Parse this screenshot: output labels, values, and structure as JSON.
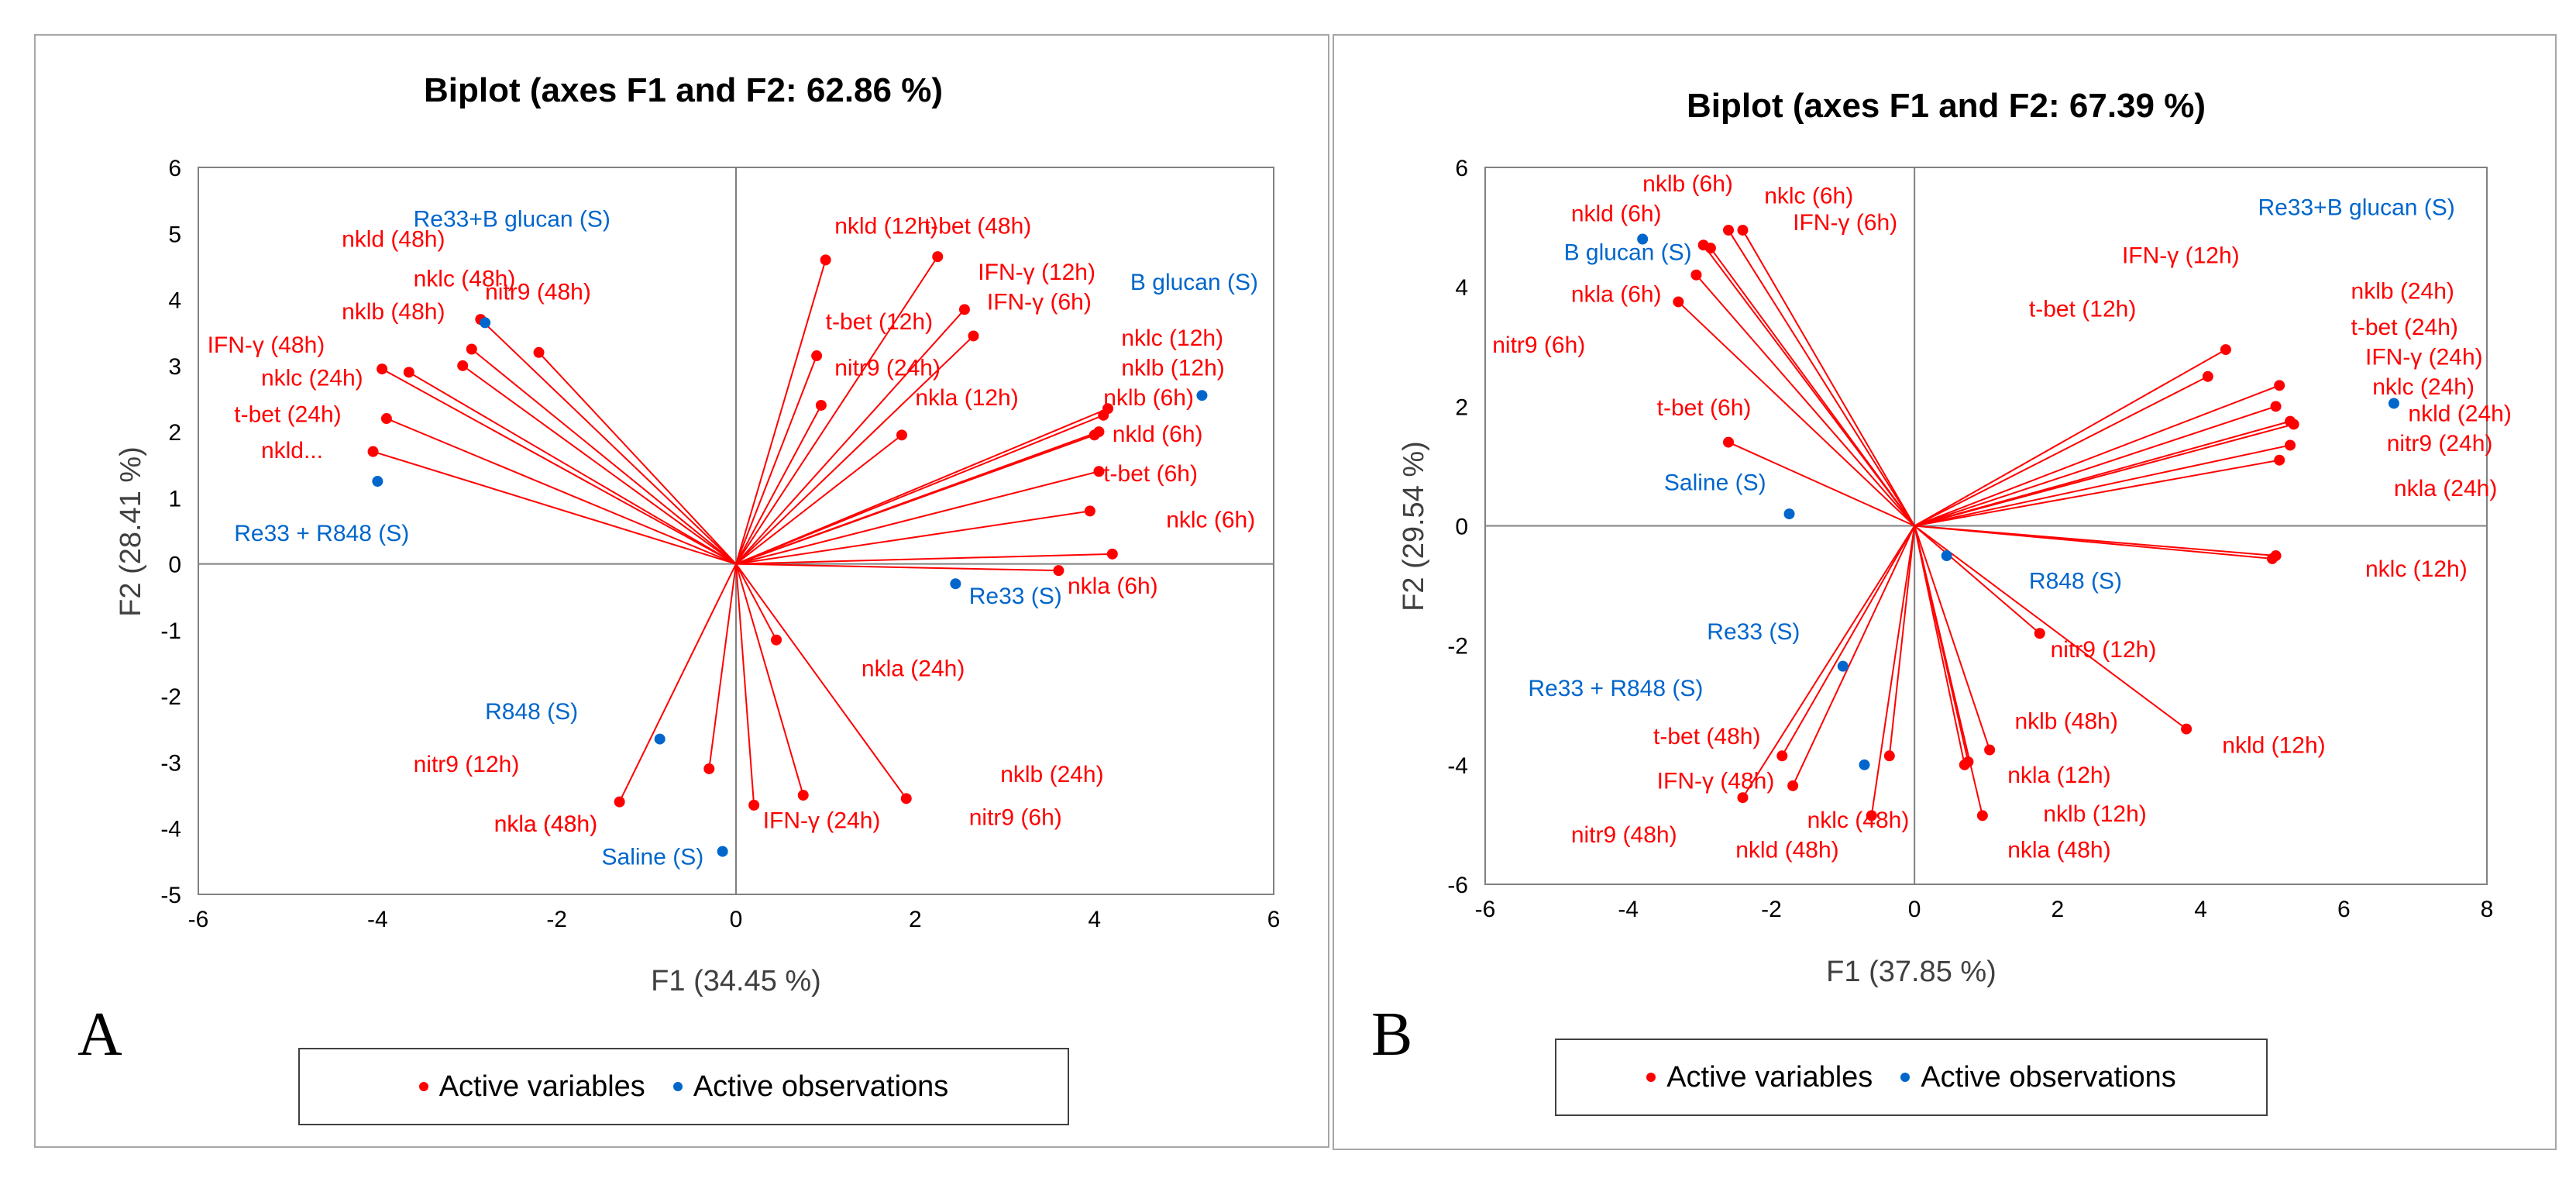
{
  "colors": {
    "variable": "#ff0000",
    "observation": "#0066cc",
    "axis": "#808080"
  },
  "legend": {
    "variables": "Active variables",
    "observations": "Active observations"
  },
  "panels": {
    "A": "A",
    "B": "B"
  },
  "chart_data": [
    {
      "type": "scatter",
      "subtype": "biplot",
      "panel": "A",
      "title": "Biplot (axes F1 and F2: 62.86 %)",
      "xlabel": "F1 (34.45 %)",
      "ylabel": "F2 (28.41 %)",
      "xlim": [
        -6,
        6
      ],
      "ylim": [
        -5,
        6
      ],
      "xticks": [
        -6,
        -4,
        -2,
        0,
        2,
        4,
        6
      ],
      "yticks": [
        -5,
        -4,
        -3,
        -2,
        -1,
        0,
        1,
        2,
        3,
        4,
        5,
        6
      ],
      "variables": [
        {
          "name": "nkld (48h)",
          "x": -2.2,
          "y": 3.2,
          "lx": -4.4,
          "ly": 4.8
        },
        {
          "name": "nklc (48h)",
          "x": -3.05,
          "y": 3.0,
          "lx": -3.6,
          "ly": 4.2
        },
        {
          "name": "nklb (48h)",
          "x": -3.65,
          "y": 2.9,
          "lx": -4.4,
          "ly": 3.7
        },
        {
          "name": "nitr9 (48h)",
          "x": -2.95,
          "y": 3.25,
          "lx": -2.8,
          "ly": 4.0
        },
        {
          "name": "IFN-γ (48h)",
          "x": -3.95,
          "y": 2.95,
          "lx": -5.9,
          "ly": 3.2
        },
        {
          "name": "nklc (24h)",
          "x": -2.85,
          "y": 3.7,
          "lx": -5.3,
          "ly": 2.7
        },
        {
          "name": "t-bet (24h)",
          "x": -3.9,
          "y": 2.2,
          "lx": -5.6,
          "ly": 2.15
        },
        {
          "name": "nkld...",
          "x": -4.05,
          "y": 1.7,
          "lx": -5.3,
          "ly": 1.6
        },
        {
          "name": "nkld (12h)",
          "x": 1.0,
          "y": 4.6,
          "lx": 1.1,
          "ly": 5.0
        },
        {
          "name": "t-bet (48h)",
          "x": 2.25,
          "y": 4.65,
          "lx": 2.1,
          "ly": 5.0
        },
        {
          "name": "IFN-γ (12h)",
          "x": 2.55,
          "y": 3.85,
          "lx": 2.7,
          "ly": 4.3
        },
        {
          "name": "IFN-γ (6h)",
          "x": 2.65,
          "y": 3.45,
          "lx": 2.8,
          "ly": 3.85
        },
        {
          "name": "t-bet (12h)",
          "x": 0.9,
          "y": 3.15,
          "lx": 1.0,
          "ly": 3.55
        },
        {
          "name": "nitr9 (24h)",
          "x": 0.95,
          "y": 2.4,
          "lx": 1.1,
          "ly": 2.85
        },
        {
          "name": "nkla (12h)",
          "x": 1.85,
          "y": 1.95,
          "lx": 2.0,
          "ly": 2.4
        },
        {
          "name": "nklc (12h)",
          "x": 4.15,
          "y": 2.35,
          "lx": 4.3,
          "ly": 3.3
        },
        {
          "name": "nklb (12h)",
          "x": 4.1,
          "y": 2.25,
          "lx": 4.3,
          "ly": 2.85
        },
        {
          "name": "nklb (6h)",
          "x": 4.05,
          "y": 2.0,
          "lx": 4.1,
          "ly": 2.4
        },
        {
          "name": "nkld (6h)",
          "x": 4.0,
          "y": 1.95,
          "lx": 4.2,
          "ly": 1.85
        },
        {
          "name": "t-bet (6h)",
          "x": 4.05,
          "y": 1.4,
          "lx": 4.1,
          "ly": 1.25
        },
        {
          "name": "nklc (6h)",
          "x": 3.95,
          "y": 0.8,
          "lx": 4.8,
          "ly": 0.55
        },
        {
          "name": "nkla (6h)",
          "x": 4.2,
          "y": 0.15,
          "lx": 3.7,
          "ly": -0.45
        },
        {
          "name": "nkla (24h)",
          "x": 3.6,
          "y": -0.1,
          "lx": 1.4,
          "ly": -1.7
        },
        {
          "name": "nklb (24h)",
          "x": 0.45,
          "y": -1.15,
          "lx": 2.95,
          "ly": -3.3
        },
        {
          "name": "nitr9 (6h)",
          "x": 1.9,
          "y": -3.55,
          "lx": 2.6,
          "ly": -3.95
        },
        {
          "name": "IFN-γ (24h)",
          "x": 0.75,
          "y": -3.5,
          "lx": 0.3,
          "ly": -4.0
        },
        {
          "name": "nkla (48h)",
          "x": 0.2,
          "y": -3.65,
          "lx": -2.7,
          "ly": -4.05
        },
        {
          "name": "nitr9 (12h)",
          "x": -0.3,
          "y": -3.1,
          "lx": -3.6,
          "ly": -3.15
        },
        {
          "name": "nkla (48h)",
          "x": -1.3,
          "y": -3.6,
          "lx": -2.7,
          "ly": -4.05
        }
      ],
      "observations": [
        {
          "name": "Re33+B glucan (S)",
          "x": -2.8,
          "y": 3.65,
          "lx": -3.6,
          "ly": 5.1
        },
        {
          "name": "B glucan (S)",
          "x": 5.2,
          "y": 2.55,
          "lx": 4.4,
          "ly": 4.15
        },
        {
          "name": "Re33 + R848 (S)",
          "x": -4.0,
          "y": 1.25,
          "lx": -5.6,
          "ly": 0.35
        },
        {
          "name": "Re33 (S)",
          "x": 2.45,
          "y": -0.3,
          "lx": 2.6,
          "ly": -0.6
        },
        {
          "name": "R848 (S)",
          "x": -0.85,
          "y": -2.65,
          "lx": -2.8,
          "ly": -2.35
        },
        {
          "name": "Saline (S)",
          "x": -0.15,
          "y": -4.35,
          "lx": -1.5,
          "ly": -4.55
        }
      ]
    },
    {
      "type": "scatter",
      "subtype": "biplot",
      "panel": "B",
      "title": "Biplot (axes F1 and F2: 67.39 %)",
      "xlabel": "F1 (37.85 %)",
      "ylabel": "F2 (29.54 %)",
      "xlim": [
        -6,
        8
      ],
      "ylim": [
        -6,
        6
      ],
      "xticks": [
        -6,
        -4,
        -2,
        0,
        2,
        4,
        6,
        8
      ],
      "yticks": [
        -6,
        -4,
        -2,
        0,
        2,
        4,
        6
      ],
      "variables": [
        {
          "name": "nklb (6h)",
          "x": -2.95,
          "y": 4.7,
          "lx": -3.8,
          "ly": 5.6
        },
        {
          "name": "nklc (6h)",
          "x": -2.6,
          "y": 4.95,
          "lx": -2.1,
          "ly": 5.4
        },
        {
          "name": "IFN-γ (6h)",
          "x": -2.4,
          "y": 4.95,
          "lx": -1.7,
          "ly": 4.95
        },
        {
          "name": "nkld (6h)",
          "x": -2.85,
          "y": 4.65,
          "lx": -4.8,
          "ly": 5.1
        },
        {
          "name": "nkla (6h)",
          "x": -3.05,
          "y": 4.2,
          "lx": -4.8,
          "ly": 3.75
        },
        {
          "name": "nitr9 (6h)",
          "x": -3.3,
          "y": 3.75,
          "lx": -5.9,
          "ly": 2.9
        },
        {
          "name": "t-bet (6h)",
          "x": -2.6,
          "y": 1.4,
          "lx": -3.6,
          "ly": 1.85
        },
        {
          "name": "IFN-γ (12h)",
          "x": 4.35,
          "y": 2.95,
          "lx": 2.9,
          "ly": 4.4
        },
        {
          "name": "t-bet (12h)",
          "x": 4.1,
          "y": 2.5,
          "lx": 1.6,
          "ly": 3.5
        },
        {
          "name": "nklb (24h)",
          "x": 5.1,
          "y": 2.35,
          "lx": 6.1,
          "ly": 3.8
        },
        {
          "name": "t-bet (24h)",
          "x": 5.05,
          "y": 2.0,
          "lx": 6.1,
          "ly": 3.2
        },
        {
          "name": "IFN-γ (24h)",
          "x": 5.25,
          "y": 1.75,
          "lx": 6.3,
          "ly": 2.7
        },
        {
          "name": "nklc (24h)",
          "x": 5.3,
          "y": 1.7,
          "lx": 6.4,
          "ly": 2.2
        },
        {
          "name": "nkld (24h)",
          "x": 5.25,
          "y": 1.35,
          "lx": 6.9,
          "ly": 1.75
        },
        {
          "name": "nitr9 (24h)",
          "x": 5.1,
          "y": 1.1,
          "lx": 6.6,
          "ly": 1.25
        },
        {
          "name": "nkla (24h)",
          "x": 5.05,
          "y": -0.5,
          "lx": 6.7,
          "ly": 0.5
        },
        {
          "name": "nklc (12h)",
          "x": 5.0,
          "y": -0.55,
          "lx": 6.3,
          "ly": -0.85
        },
        {
          "name": "nkld (12h)",
          "x": 3.8,
          "y": -3.4,
          "lx": 4.3,
          "ly": -3.8
        },
        {
          "name": "nitr9 (12h)",
          "x": 1.75,
          "y": -1.8,
          "lx": 1.9,
          "ly": -2.2
        },
        {
          "name": "nklb (48h)",
          "x": 1.05,
          "y": -3.75,
          "lx": 1.4,
          "ly": -3.4
        },
        {
          "name": "nkla (12h)",
          "x": 0.75,
          "y": -3.95,
          "lx": 1.3,
          "ly": -4.3
        },
        {
          "name": "nklb (12h)",
          "x": 0.7,
          "y": -4.0,
          "lx": 1.8,
          "ly": -4.95
        },
        {
          "name": "nkla (48h)",
          "x": 0.95,
          "y": -4.85,
          "lx": 1.3,
          "ly": -5.55
        },
        {
          "name": "t-bet (48h)",
          "x": -0.35,
          "y": -3.85,
          "lx": -3.65,
          "ly": -3.65
        },
        {
          "name": "IFN-γ (48h)",
          "x": -0.6,
          "y": -4.85,
          "lx": -3.6,
          "ly": -4.4
        },
        {
          "name": "nklc (48h)",
          "x": -1.7,
          "y": -4.35,
          "lx": -1.5,
          "ly": -5.05
        },
        {
          "name": "nitr9 (48h)",
          "x": -1.85,
          "y": -3.85,
          "lx": -4.8,
          "ly": -5.3
        },
        {
          "name": "nkld (48h)",
          "x": -2.4,
          "y": -4.55,
          "lx": -2.5,
          "ly": -5.55
        }
      ],
      "observations": [
        {
          "name": "Re33+B glucan (S)",
          "x": 6.7,
          "y": 2.05,
          "lx": 4.8,
          "ly": 5.2
        },
        {
          "name": "B glucan (S)",
          "x": -3.8,
          "y": 4.8,
          "lx": -4.9,
          "ly": 4.45
        },
        {
          "name": "Saline (S)",
          "x": -1.75,
          "y": 0.2,
          "lx": -3.5,
          "ly": 0.6
        },
        {
          "name": "R848 (S)",
          "x": 0.45,
          "y": -0.5,
          "lx": 1.6,
          "ly": -1.05
        },
        {
          "name": "Re33 (S)",
          "x": -1.0,
          "y": -2.35,
          "lx": -2.9,
          "ly": -1.9
        },
        {
          "name": "Re33 + R848 (S)",
          "x": -0.7,
          "y": -4.0,
          "lx": -5.4,
          "ly": -2.85
        }
      ]
    }
  ]
}
